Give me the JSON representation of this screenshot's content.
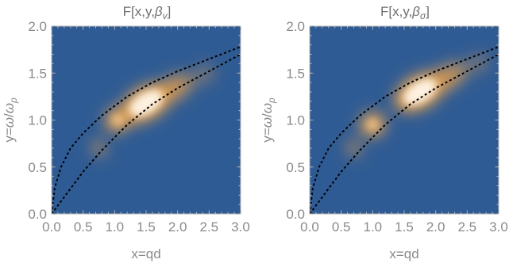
{
  "chart_data": [
    {
      "type": "heatmap",
      "title_parts": [
        "F[x,y,",
        "β",
        "v",
        "]"
      ],
      "xlabel": "x=qd",
      "ylabel_parts": [
        "y=",
        "ω",
        "/",
        "ω",
        "p"
      ],
      "xlim": [
        0,
        3
      ],
      "ylim": [
        0,
        2
      ],
      "x_ticks": [
        "0.0",
        "0.5",
        "1.0",
        "1.5",
        "2.0",
        "2.5",
        "3.0"
      ],
      "y_ticks": [
        "0.0",
        "0.5",
        "1.0",
        "1.5",
        "2.0"
      ],
      "background_color": "#2f5b94",
      "peak_color": "#fff5e8",
      "glow_color": "#e8a04a",
      "hot_region": {
        "center_x": 1.5,
        "center_y": 1.18,
        "secondary_x": 1.05,
        "secondary_y": 1.0,
        "tail_x": 0.75,
        "tail_y": 0.7
      },
      "boundary_curves": [
        {
          "style": "dashed",
          "points": [
            [
              0,
              0
            ],
            [
              0.05,
              0.28
            ],
            [
              0.15,
              0.5
            ],
            [
              0.3,
              0.7
            ],
            [
              0.5,
              0.86
            ],
            [
              0.8,
              1.05
            ],
            [
              1.2,
              1.25
            ],
            [
              1.6,
              1.4
            ],
            [
              2.0,
              1.52
            ],
            [
              2.5,
              1.65
            ],
            [
              3.0,
              1.78
            ]
          ]
        },
        {
          "style": "dashed",
          "points": [
            [
              0,
              0
            ],
            [
              0.2,
              0.18
            ],
            [
              0.5,
              0.45
            ],
            [
              0.8,
              0.68
            ],
            [
              1.2,
              0.95
            ],
            [
              1.6,
              1.17
            ],
            [
              2.0,
              1.34
            ],
            [
              2.5,
              1.52
            ],
            [
              3.0,
              1.7
            ]
          ]
        }
      ]
    },
    {
      "type": "heatmap",
      "title_parts": [
        "F[x,y,",
        "β",
        "σ",
        "]"
      ],
      "xlabel": "x=qd",
      "ylabel_parts": [
        "y=",
        "ω",
        "/",
        "ω",
        "p"
      ],
      "xlim": [
        0,
        3
      ],
      "ylim": [
        0,
        2
      ],
      "x_ticks": [
        "0.0",
        "0.5",
        "1.0",
        "1.5",
        "2.0",
        "2.5",
        "3.0"
      ],
      "y_ticks": [
        "0.0",
        "0.5",
        "1.0",
        "1.5",
        "2.0"
      ],
      "background_color": "#2f5b94",
      "peak_color": "#fff5e8",
      "glow_color": "#e8a04a",
      "hot_region": {
        "center_x": 1.75,
        "center_y": 1.3,
        "secondary_x": 1.0,
        "secondary_y": 0.95,
        "tail_x": 0.7,
        "tail_y": 0.7
      },
      "boundary_curves": [
        {
          "style": "dashed",
          "points": [
            [
              0,
              0
            ],
            [
              0.05,
              0.28
            ],
            [
              0.15,
              0.5
            ],
            [
              0.3,
              0.7
            ],
            [
              0.5,
              0.86
            ],
            [
              0.8,
              1.05
            ],
            [
              1.2,
              1.25
            ],
            [
              1.6,
              1.4
            ],
            [
              2.0,
              1.52
            ],
            [
              2.5,
              1.65
            ],
            [
              3.0,
              1.78
            ]
          ]
        },
        {
          "style": "dashed",
          "points": [
            [
              0,
              0
            ],
            [
              0.2,
              0.18
            ],
            [
              0.5,
              0.45
            ],
            [
              0.8,
              0.68
            ],
            [
              1.2,
              0.95
            ],
            [
              1.6,
              1.17
            ],
            [
              2.0,
              1.34
            ],
            [
              2.5,
              1.52
            ],
            [
              3.0,
              1.7
            ]
          ]
        }
      ]
    }
  ]
}
